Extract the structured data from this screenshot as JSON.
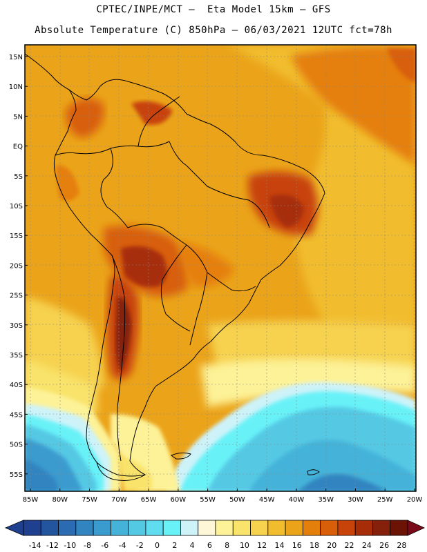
{
  "header": {
    "line1": "CPTEC/INPE/MCT –  Eta Model 15km – GFS",
    "line2": "Absolute Temperature (C) 850hPa – 06/03/2021 12UTC fct=78h"
  },
  "map": {
    "lat_labels": [
      "15N",
      "10N",
      "5N",
      "EQ",
      "5S",
      "10S",
      "15S",
      "20S",
      "25S",
      "30S",
      "35S",
      "40S",
      "45S",
      "50S",
      "55S"
    ],
    "lon_labels": [
      "85W",
      "80W",
      "75W",
      "70W",
      "65W",
      "60W",
      "55W",
      "50W",
      "45W",
      "40W",
      "35W",
      "30W",
      "25W",
      "20W"
    ],
    "lat_range": [
      -57.5,
      16.5
    ],
    "lon_range": [
      -86,
      -20
    ]
  },
  "colorbar": {
    "labels": [
      "-14",
      "-12",
      "-10",
      "-8",
      "-6",
      "-4",
      "-2",
      "0",
      "2",
      "4",
      "6",
      "8",
      "10",
      "12",
      "14",
      "16",
      "18",
      "20",
      "22",
      "24",
      "26",
      "28"
    ],
    "colors": [
      "#1f3f8f",
      "#23559f",
      "#2b6bb1",
      "#3184c0",
      "#3a9bcf",
      "#45b3d9",
      "#54c9e4",
      "#5fdcef",
      "#68f2f8",
      "#cdf3f9",
      "#fdf7d8",
      "#fdf297",
      "#f9e36a",
      "#f6d24f",
      "#f1bd2e",
      "#eba41a",
      "#e57f0c",
      "#d85e0a",
      "#c7430a",
      "#a72d09",
      "#85200a",
      "#6b1405"
    ]
  }
}
